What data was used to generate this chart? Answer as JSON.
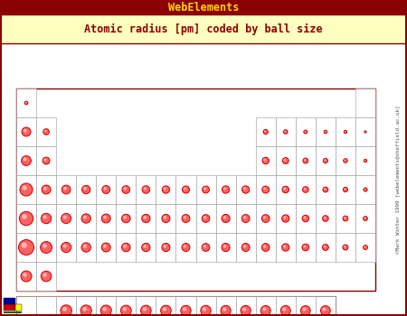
{
  "title_bar": "WebElements",
  "title_bar_bg": "#8B0000",
  "title_bar_fg": "#FFD700",
  "subtitle": "Atomic radius [pm] coded by ball size",
  "subtitle_bg": "#FFFFC0",
  "subtitle_fg": "#8B0000",
  "bg_color": "#FFFFFF",
  "cell_edge": "#999999",
  "ball_color": "#FF6060",
  "ball_edge": "#CC0000",
  "outer_border": "#8B0000",
  "inner_bg": "#FFFFFF",
  "periodic_elements": [
    {
      "row": 1,
      "col": 1,
      "r": 0.18
    },
    {
      "row": 1,
      "col": 18,
      "r": 0.05
    },
    {
      "row": 2,
      "col": 1,
      "r": 0.48
    },
    {
      "row": 2,
      "col": 2,
      "r": 0.32
    },
    {
      "row": 2,
      "col": 13,
      "r": 0.26
    },
    {
      "row": 2,
      "col": 14,
      "r": 0.22
    },
    {
      "row": 2,
      "col": 15,
      "r": 0.19
    },
    {
      "row": 2,
      "col": 16,
      "r": 0.17
    },
    {
      "row": 2,
      "col": 17,
      "r": 0.16
    },
    {
      "row": 2,
      "col": 18,
      "r": 0.11
    },
    {
      "row": 3,
      "col": 1,
      "r": 0.52
    },
    {
      "row": 3,
      "col": 2,
      "r": 0.38
    },
    {
      "row": 3,
      "col": 13,
      "r": 0.36
    },
    {
      "row": 3,
      "col": 14,
      "r": 0.33
    },
    {
      "row": 3,
      "col": 15,
      "r": 0.28
    },
    {
      "row": 3,
      "col": 16,
      "r": 0.25
    },
    {
      "row": 3,
      "col": 17,
      "r": 0.22
    },
    {
      "row": 3,
      "col": 18,
      "r": 0.16
    },
    {
      "row": 4,
      "col": 1,
      "r": 0.68
    },
    {
      "row": 4,
      "col": 2,
      "r": 0.48
    },
    {
      "row": 4,
      "col": 3,
      "r": 0.47
    },
    {
      "row": 4,
      "col": 4,
      "r": 0.45
    },
    {
      "row": 4,
      "col": 5,
      "r": 0.43
    },
    {
      "row": 4,
      "col": 6,
      "r": 0.42
    },
    {
      "row": 4,
      "col": 7,
      "r": 0.41
    },
    {
      "row": 4,
      "col": 8,
      "r": 0.4
    },
    {
      "row": 4,
      "col": 9,
      "r": 0.39
    },
    {
      "row": 4,
      "col": 10,
      "r": 0.38
    },
    {
      "row": 4,
      "col": 11,
      "r": 0.4
    },
    {
      "row": 4,
      "col": 12,
      "r": 0.4
    },
    {
      "row": 4,
      "col": 13,
      "r": 0.38
    },
    {
      "row": 4,
      "col": 14,
      "r": 0.36
    },
    {
      "row": 4,
      "col": 15,
      "r": 0.32
    },
    {
      "row": 4,
      "col": 16,
      "r": 0.28
    },
    {
      "row": 4,
      "col": 17,
      "r": 0.25
    },
    {
      "row": 4,
      "col": 18,
      "r": 0.2
    },
    {
      "row": 5,
      "col": 1,
      "r": 0.74
    },
    {
      "row": 5,
      "col": 2,
      "r": 0.55
    },
    {
      "row": 5,
      "col": 3,
      "r": 0.53
    },
    {
      "row": 5,
      "col": 4,
      "r": 0.5
    },
    {
      "row": 5,
      "col": 5,
      "r": 0.48
    },
    {
      "row": 5,
      "col": 6,
      "r": 0.46
    },
    {
      "row": 5,
      "col": 7,
      "r": 0.45
    },
    {
      "row": 5,
      "col": 8,
      "r": 0.44
    },
    {
      "row": 5,
      "col": 9,
      "r": 0.43
    },
    {
      "row": 5,
      "col": 10,
      "r": 0.42
    },
    {
      "row": 5,
      "col": 11,
      "r": 0.44
    },
    {
      "row": 5,
      "col": 12,
      "r": 0.43
    },
    {
      "row": 5,
      "col": 13,
      "r": 0.42
    },
    {
      "row": 5,
      "col": 14,
      "r": 0.4
    },
    {
      "row": 5,
      "col": 15,
      "r": 0.36
    },
    {
      "row": 5,
      "col": 16,
      "r": 0.32
    },
    {
      "row": 5,
      "col": 17,
      "r": 0.28
    },
    {
      "row": 5,
      "col": 18,
      "r": 0.23
    },
    {
      "row": 6,
      "col": 1,
      "r": 0.82
    },
    {
      "row": 6,
      "col": 2,
      "r": 0.62
    },
    {
      "row": 6,
      "col": 3,
      "r": 0.54
    },
    {
      "row": 6,
      "col": 4,
      "r": 0.5
    },
    {
      "row": 6,
      "col": 5,
      "r": 0.48
    },
    {
      "row": 6,
      "col": 6,
      "r": 0.46
    },
    {
      "row": 6,
      "col": 7,
      "r": 0.45
    },
    {
      "row": 6,
      "col": 8,
      "r": 0.44
    },
    {
      "row": 6,
      "col": 9,
      "r": 0.43
    },
    {
      "row": 6,
      "col": 10,
      "r": 0.42
    },
    {
      "row": 6,
      "col": 11,
      "r": 0.44
    },
    {
      "row": 6,
      "col": 12,
      "r": 0.43
    },
    {
      "row": 6,
      "col": 13,
      "r": 0.42
    },
    {
      "row": 6,
      "col": 14,
      "r": 0.4
    },
    {
      "row": 6,
      "col": 15,
      "r": 0.37
    },
    {
      "row": 6,
      "col": 16,
      "r": 0.33
    },
    {
      "row": 6,
      "col": 17,
      "r": 0.29
    },
    {
      "row": 6,
      "col": 18,
      "r": 0.24
    },
    {
      "row": 7,
      "col": 1,
      "r": 0.58
    },
    {
      "row": 7,
      "col": 2,
      "r": 0.56
    }
  ],
  "lanthanide_elements": [
    {
      "col": 3,
      "r": 0.6
    },
    {
      "col": 4,
      "r": 0.59
    },
    {
      "col": 5,
      "r": 0.58
    },
    {
      "col": 6,
      "r": 0.57
    },
    {
      "col": 7,
      "r": 0.56
    },
    {
      "col": 8,
      "r": 0.56
    },
    {
      "col": 9,
      "r": 0.55
    },
    {
      "col": 10,
      "r": 0.55
    },
    {
      "col": 11,
      "r": 0.54
    },
    {
      "col": 12,
      "r": 0.54
    },
    {
      "col": 13,
      "r": 0.53
    },
    {
      "col": 14,
      "r": 0.53
    },
    {
      "col": 15,
      "r": 0.52
    },
    {
      "col": 16,
      "r": 0.52
    }
  ],
  "watermark": "©Mark Winter 1999 [webelements@sheffield.ac.uk]",
  "legend_colors": [
    "#000099",
    "#CC0000",
    "#FFFF00",
    "#006600"
  ]
}
